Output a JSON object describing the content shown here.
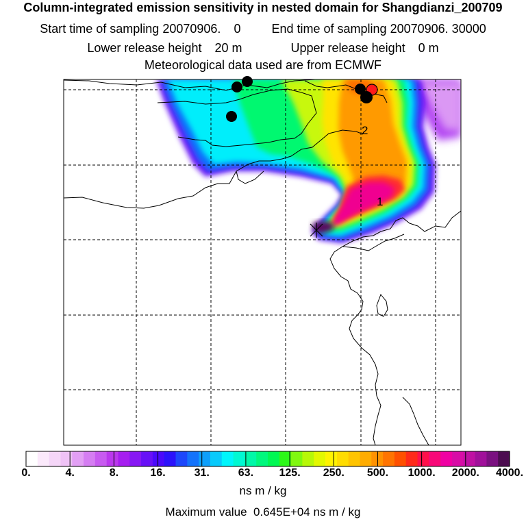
{
  "header": {
    "title": "Column-integrated emission sensitivity in nested domain for Shangdianzi_200709",
    "start_label": "Start time of sampling",
    "start_value": "20070906.",
    "start_hour": "0",
    "end_label": "End time of sampling",
    "end_value": "20070906. 30000",
    "lower_label": "Lower release height",
    "lower_value": "20 m",
    "upper_label": "Upper release height",
    "upper_value": "0 m",
    "met_text": "Meteorological data used are from ECMWF"
  },
  "map": {
    "annotations": [
      "1",
      "2"
    ]
  },
  "colorbar": {
    "tick_labels": [
      "0.",
      "4.",
      "8.",
      "16.",
      "31.",
      "63.",
      "125.",
      "250.",
      "500.",
      "1000.",
      "2000.",
      "4000."
    ],
    "colors": [
      "#ffffff",
      "#fbe9fb",
      "#f5d6f8",
      "#efc2f6",
      "#e29ff4",
      "#d57df2",
      "#c85bf0",
      "#bb38ee",
      "#a61ef0",
      "#8717f4",
      "#6810f7",
      "#4a09fb",
      "#2b12fb",
      "#1d47fb",
      "#1473fb",
      "#0e9ffb",
      "#08cafb",
      "#00f5fb",
      "#00f8d2",
      "#00f8a8",
      "#00f87d",
      "#00f853",
      "#2df818",
      "#80f810",
      "#b7f808",
      "#e3f800",
      "#fff300",
      "#ffdc00",
      "#ffc400",
      "#ffac00",
      "#ff9200",
      "#ff7400",
      "#ff5000",
      "#ff2a1a",
      "#ff104a",
      "#f80878",
      "#f000a3",
      "#d80ca6",
      "#bf10a3",
      "#a0109a",
      "#7a1080",
      "#4c0c50"
    ],
    "units": "ns m / kg",
    "max_label": "Maximum value",
    "max_value": "0.645E+04",
    "max_units": "ns m / kg"
  }
}
